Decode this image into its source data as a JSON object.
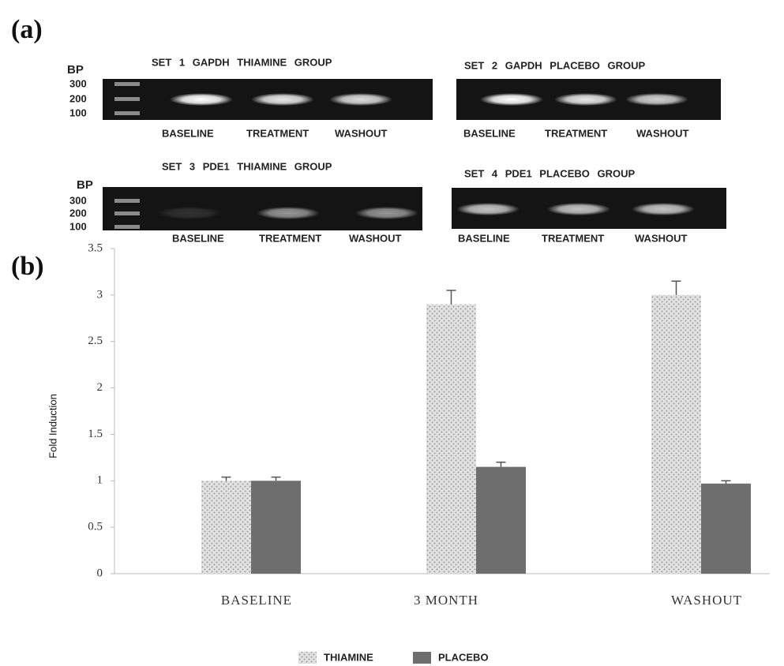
{
  "panel_labels": [
    "(a)",
    "(b)"
  ],
  "gels": [
    {
      "title": "SET 1 GAPDH THIAMINE GROUP",
      "ladder": {
        "label": "BP",
        "marks": [
          "300",
          "200",
          "100"
        ]
      },
      "lanes": [
        "BASELINE",
        "TREATMENT",
        "WASHOUT"
      ]
    },
    {
      "title": "SET 2 GAPDH PLACEBO GROUP",
      "lanes": [
        "BASELINE",
        "TREATMENT",
        "WASHOUT"
      ]
    },
    {
      "title": "SET 3 PDE1 THIAMINE GROUP",
      "ladder": {
        "label": "BP",
        "marks": [
          "300",
          "200",
          "100"
        ]
      },
      "lanes": [
        "BASELINE",
        "TREATMENT",
        "WASHOUT"
      ]
    },
    {
      "title": "SET 4 PDE1 PLACEBO GROUP",
      "lanes": [
        "BASELINE",
        "TREATMENT",
        "WASHOUT"
      ]
    }
  ],
  "chart_data": {
    "type": "bar",
    "y_label": "Fold Induction",
    "categories": [
      "BASELINE",
      "3 MONTH",
      "WASHOUT"
    ],
    "series": [
      {
        "name": "THIAMINE",
        "color": "#e2e2e2",
        "values": [
          1.0,
          2.9,
          3.0
        ],
        "errors": [
          0.04,
          0.15,
          0.15
        ]
      },
      {
        "name": "PLACEBO",
        "color": "#6e6e6e",
        "values": [
          1.0,
          1.15,
          0.97
        ],
        "errors": [
          0.04,
          0.05,
          0.03
        ]
      }
    ],
    "ylim": [
      0,
      3.5
    ],
    "yticks": [
      0,
      0.5,
      1,
      1.5,
      2,
      2.5,
      3,
      3.5
    ],
    "grid": false,
    "legend": "bottom"
  }
}
